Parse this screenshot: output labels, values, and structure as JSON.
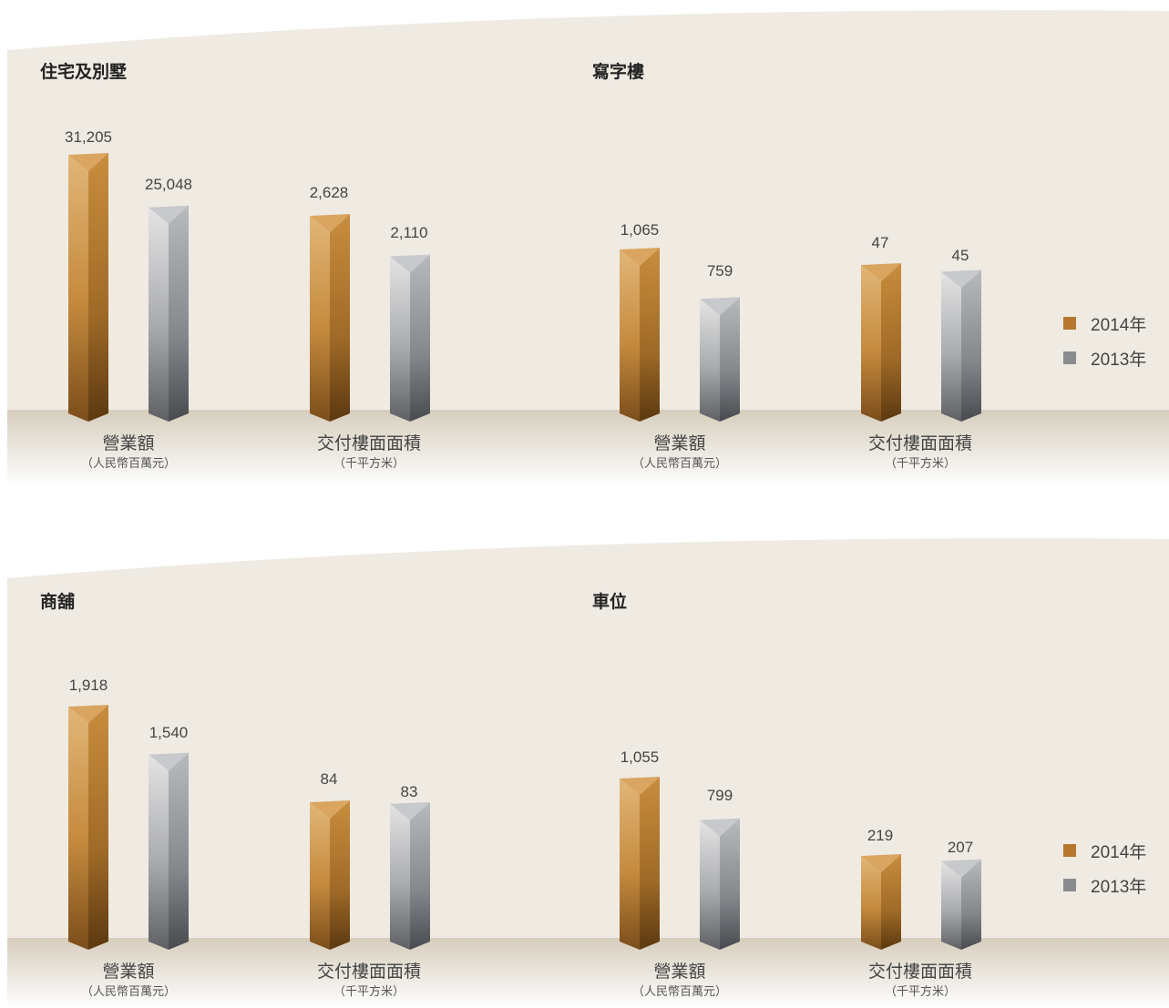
{
  "colors": {
    "y2014": "#b5782e",
    "y2013": "#8a8c8f",
    "panel_bg": "#efebe3",
    "floor": "#ddd5c6"
  },
  "legend": [
    {
      "label": "2014年",
      "color": "#b5782e"
    },
    {
      "label": "2013年",
      "color": "#8a8c8f"
    }
  ],
  "chart_data": [
    {
      "type": "bar",
      "title": "住宅及別墅",
      "groups": [
        {
          "category": "營業額",
          "unit": "（人民幣百萬元）",
          "values": {
            "2014": "31,205",
            "2013": "25,048"
          },
          "v2014": 31205,
          "v2013": 25048
        },
        {
          "category": "交付樓面面積",
          "unit": "（千平方米）",
          "values": {
            "2014": "2,628",
            "2013": "2,110"
          },
          "v2014": 2628,
          "v2013": 2110
        }
      ]
    },
    {
      "type": "bar",
      "title": "寫字樓",
      "groups": [
        {
          "category": "營業額",
          "unit": "（人民幣百萬元）",
          "values": {
            "2014": "1,065",
            "2013": "759"
          },
          "v2014": 1065,
          "v2013": 759
        },
        {
          "category": "交付樓面面積",
          "unit": "（千平方米）",
          "values": {
            "2014": "47",
            "2013": "45"
          },
          "v2014": 47,
          "v2013": 45
        }
      ]
    },
    {
      "type": "bar",
      "title": "商舖",
      "groups": [
        {
          "category": "營業額",
          "unit": "（人民幣百萬元）",
          "values": {
            "2014": "1,918",
            "2013": "1,540"
          },
          "v2014": 1918,
          "v2013": 1540
        },
        {
          "category": "交付樓面面積",
          "unit": "（千平方米）",
          "values": {
            "2014": "84",
            "2013": "83"
          },
          "v2014": 84,
          "v2013": 83
        }
      ]
    },
    {
      "type": "bar",
      "title": "車位",
      "groups": [
        {
          "category": "營業額",
          "unit": "（人民幣百萬元）",
          "values": {
            "2014": "1,055",
            "2013": "799"
          },
          "v2014": 1055,
          "v2013": 799
        },
        {
          "category": "交付樓面面積",
          "unit": "（千平方米）",
          "values": {
            "2014": "219",
            "2013": "207"
          },
          "v2014": 219,
          "v2013": 207
        }
      ]
    }
  ]
}
